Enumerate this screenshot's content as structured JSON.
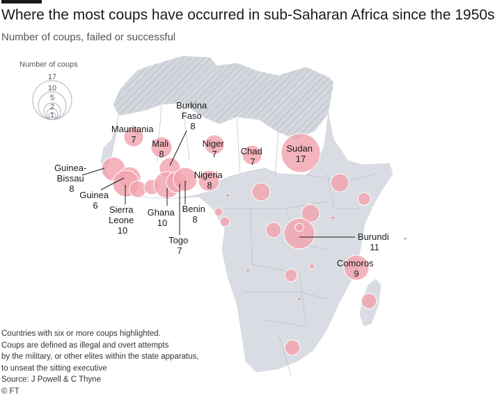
{
  "title": "Where the most coups have occurred in sub-Saharan Africa since the 1950s",
  "subtitle": "Number of coups, failed or successful",
  "legend": {
    "title": "Number of coups",
    "values": [
      "17",
      "10",
      "5",
      "2",
      "1"
    ]
  },
  "labels": {
    "burkina_faso": [
      "Burkina",
      "Faso",
      "8"
    ],
    "mauritania": [
      "Mauritania",
      "7"
    ],
    "mali": [
      "Mali",
      "8"
    ],
    "niger": [
      "Niger",
      "7"
    ],
    "chad": [
      "Chad",
      "7"
    ],
    "sudan": [
      "Sudan",
      "17"
    ],
    "guinea_bissau": [
      "Guinea-",
      "Bissau",
      "8"
    ],
    "guinea": [
      "Guinea",
      "6"
    ],
    "nigeria": [
      "Nigeria",
      "8"
    ],
    "sierra_leone": [
      "Sierra",
      "Leone",
      "10"
    ],
    "ghana": [
      "Ghana",
      "10"
    ],
    "benin": [
      "Benin",
      "8"
    ],
    "togo": [
      "Togo",
      "7"
    ],
    "burundi": [
      "Burundi",
      "11"
    ],
    "comoros": [
      "Comoros",
      "9"
    ]
  },
  "footer": {
    "note1": "Countries with six or more coups highlighted.",
    "note2": "Coups are defined as illegal and overt attempts",
    "note3": "by the military, or other elites within the state apparatus,",
    "note4": "to unseat the sitting executive",
    "source": "Source: J Powell & C Thyne",
    "credit": "© FT"
  },
  "colors": {
    "land": "#d9dde3",
    "hatched_north": "#cfd3da",
    "highlight": "#ffffff",
    "bubble": "#f2a3ae",
    "small_dot": "#e8707f"
  }
}
